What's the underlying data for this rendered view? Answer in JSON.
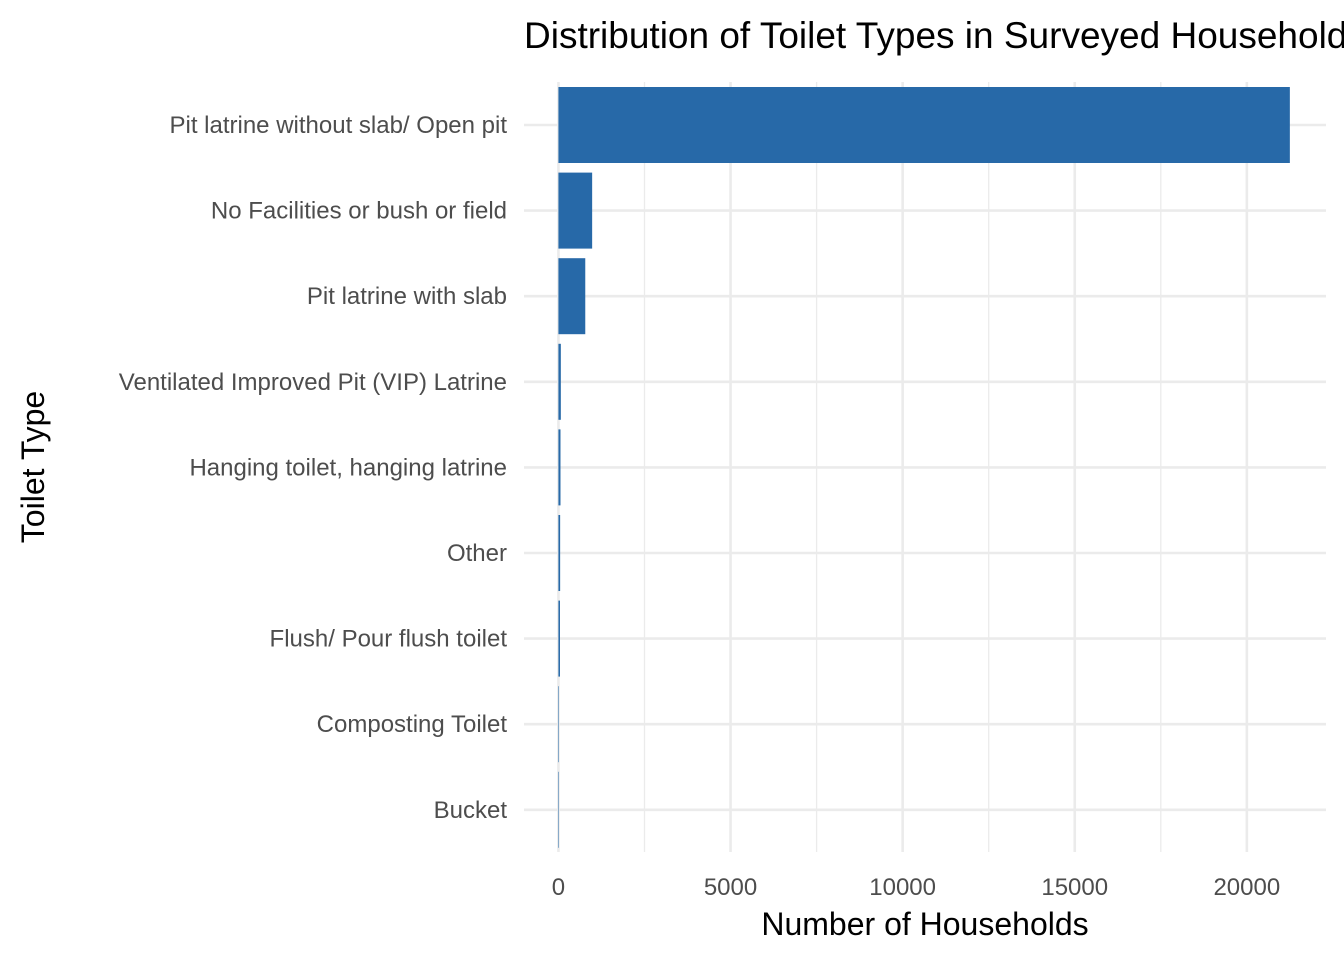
{
  "chart_data": {
    "type": "bar",
    "orientation": "horizontal",
    "title": "Distribution of Toilet Types in Surveyed Households",
    "xlabel": "Number of Households",
    "ylabel": "Toilet Type",
    "categories": [
      "Pit latrine without slab/ Open pit",
      "No Facilities or bush or field",
      "Pit latrine with slab",
      "Ventilated Improved Pit (VIP) Latrine",
      "Hanging toilet, hanging latrine",
      "Other",
      "Flush/ Pour flush toilet",
      "Composting Toilet",
      "Bucket"
    ],
    "values": [
      21250,
      980,
      780,
      70,
      60,
      50,
      45,
      15,
      5
    ],
    "xlim": [
      -1000,
      22300
    ],
    "x_ticks": [
      "0",
      "5000",
      "10000",
      "15000",
      "20000"
    ],
    "x_tick_values": [
      0,
      5000,
      10000,
      15000,
      20000
    ],
    "bar_color": "#2769a8",
    "grid": true,
    "legend": "none"
  }
}
